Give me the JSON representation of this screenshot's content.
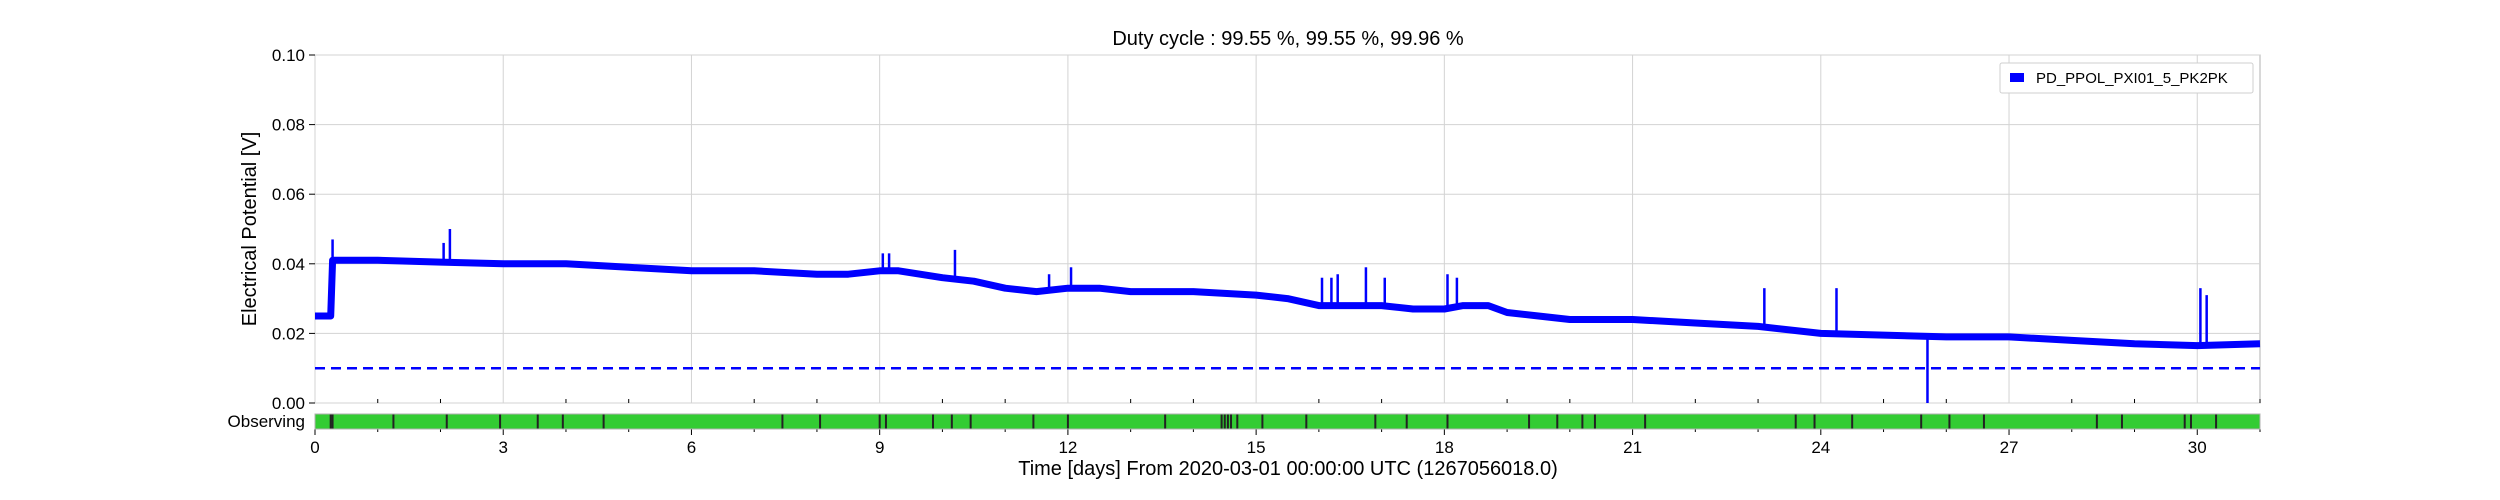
{
  "chart_data": {
    "type": "line",
    "title": "Duty cycle : 99.55 %, 99.55 %, 99.96 %",
    "xlabel": "Time [days] From 2020-03-01 00:00:00 UTC (1267056018.0)",
    "ylabel": "Electrical Potential [V]",
    "xlim": [
      0,
      31
    ],
    "ylim": [
      0,
      0.1
    ],
    "x_ticks": [
      0,
      3,
      6,
      9,
      12,
      15,
      18,
      21,
      24,
      27,
      30
    ],
    "y_ticks": [
      "0.00",
      "0.02",
      "0.04",
      "0.06",
      "0.08",
      "0.10"
    ],
    "grid": true,
    "legend_position": "top-right",
    "series": [
      {
        "name": "PD_PPOL_PXI01_5_PK2PK",
        "color": "#0000ff",
        "x": [
          0,
          0.25,
          0.28,
          0.3,
          1,
          2,
          3,
          4,
          5,
          6,
          7,
          8,
          8.5,
          9,
          9.3,
          10,
          10.5,
          11,
          11.5,
          12,
          12.5,
          13,
          14,
          15,
          15.5,
          16,
          17,
          17.5,
          18,
          18.3,
          18.7,
          19,
          19.5,
          20,
          21,
          22,
          23,
          24,
          25,
          26,
          27,
          28,
          29,
          30,
          31
        ],
        "y": [
          0.025,
          0.025,
          0.041,
          0.041,
          0.041,
          0.0405,
          0.04,
          0.04,
          0.039,
          0.038,
          0.038,
          0.037,
          0.037,
          0.038,
          0.038,
          0.036,
          0.035,
          0.033,
          0.032,
          0.033,
          0.033,
          0.032,
          0.032,
          0.031,
          0.03,
          0.028,
          0.028,
          0.027,
          0.027,
          0.028,
          0.028,
          0.026,
          0.025,
          0.024,
          0.024,
          0.023,
          0.022,
          0.02,
          0.0195,
          0.019,
          0.019,
          0.018,
          0.017,
          0.0165,
          0.017
        ]
      }
    ],
    "spikes": [
      {
        "x": 0.28,
        "y": 0.047
      },
      {
        "x": 2.05,
        "y": 0.046
      },
      {
        "x": 2.15,
        "y": 0.05
      },
      {
        "x": 9.05,
        "y": 0.043
      },
      {
        "x": 9.15,
        "y": 0.043
      },
      {
        "x": 10.2,
        "y": 0.044
      },
      {
        "x": 11.7,
        "y": 0.037
      },
      {
        "x": 12.05,
        "y": 0.039
      },
      {
        "x": 16.05,
        "y": 0.036
      },
      {
        "x": 16.2,
        "y": 0.036
      },
      {
        "x": 16.3,
        "y": 0.037
      },
      {
        "x": 16.75,
        "y": 0.039
      },
      {
        "x": 17.05,
        "y": 0.036
      },
      {
        "x": 18.05,
        "y": 0.037
      },
      {
        "x": 18.2,
        "y": 0.036
      },
      {
        "x": 23.1,
        "y": 0.033
      },
      {
        "x": 24.25,
        "y": 0.033
      },
      {
        "x": 30.05,
        "y": 0.033
      },
      {
        "x": 30.15,
        "y": 0.031
      }
    ],
    "dips": [
      {
        "x": 25.7,
        "y": 0.0
      }
    ],
    "threshold": {
      "y": 0.01,
      "style": "dashed",
      "color": "#0000ff"
    },
    "state_segments": {
      "label": "Observing",
      "on_color": "#33cc33",
      "off_color": "#222222",
      "off_times": [
        0.25,
        0.28,
        1.25,
        2.1,
        2.95,
        3.55,
        3.95,
        4.6,
        7.45,
        8.05,
        9.0,
        9.1,
        9.85,
        10.15,
        10.45,
        11.45,
        12.0,
        13.55,
        14.45,
        14.5,
        14.55,
        14.6,
        14.7,
        15.1,
        15.8,
        16.9,
        17.4,
        18.05,
        19.35,
        19.8,
        20.2,
        20.4,
        21.2,
        23.6,
        23.9,
        24.5,
        25.6,
        26.05,
        26.6,
        28.4,
        28.8,
        29.8,
        29.9,
        30.3
      ]
    }
  }
}
